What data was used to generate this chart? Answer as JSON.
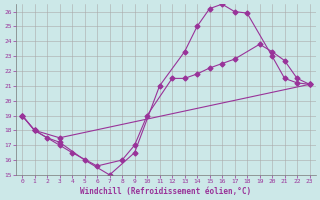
{
  "xlabel": "Windchill (Refroidissement éolien,°C)",
  "bg_color": "#cce8e8",
  "line_color": "#993399",
  "grid_color": "#aaaaaa",
  "xlim": [
    -0.5,
    23.5
  ],
  "ylim": [
    15,
    26.5
  ],
  "xticks": [
    0,
    1,
    2,
    3,
    4,
    5,
    6,
    7,
    8,
    9,
    10,
    11,
    12,
    13,
    14,
    15,
    16,
    17,
    18,
    19,
    20,
    21,
    22,
    23
  ],
  "yticks": [
    15,
    16,
    17,
    18,
    19,
    20,
    21,
    22,
    23,
    24,
    25,
    26
  ],
  "lines": [
    {
      "x": [
        0,
        1,
        2,
        3,
        5,
        7,
        9,
        11,
        13,
        14,
        15,
        16,
        17,
        18,
        20,
        21,
        22,
        23
      ],
      "y": [
        19.0,
        18.0,
        17.5,
        17.2,
        16.0,
        15.0,
        16.5,
        21.0,
        23.3,
        25.0,
        26.2,
        26.5,
        26.0,
        25.9,
        23.0,
        21.5,
        21.2,
        21.1
      ]
    },
    {
      "x": [
        0,
        1,
        3,
        4,
        6,
        8,
        9,
        10,
        12,
        13,
        14,
        15,
        16,
        17,
        19,
        20,
        21,
        22,
        23
      ],
      "y": [
        19.0,
        18.0,
        17.0,
        16.5,
        15.6,
        16.0,
        17.0,
        19.0,
        21.5,
        21.5,
        21.8,
        22.2,
        22.5,
        22.8,
        23.8,
        23.3,
        22.7,
        21.5,
        21.1
      ]
    },
    {
      "x": [
        0,
        1,
        3,
        23
      ],
      "y": [
        19.0,
        18.0,
        17.5,
        21.1
      ]
    }
  ]
}
